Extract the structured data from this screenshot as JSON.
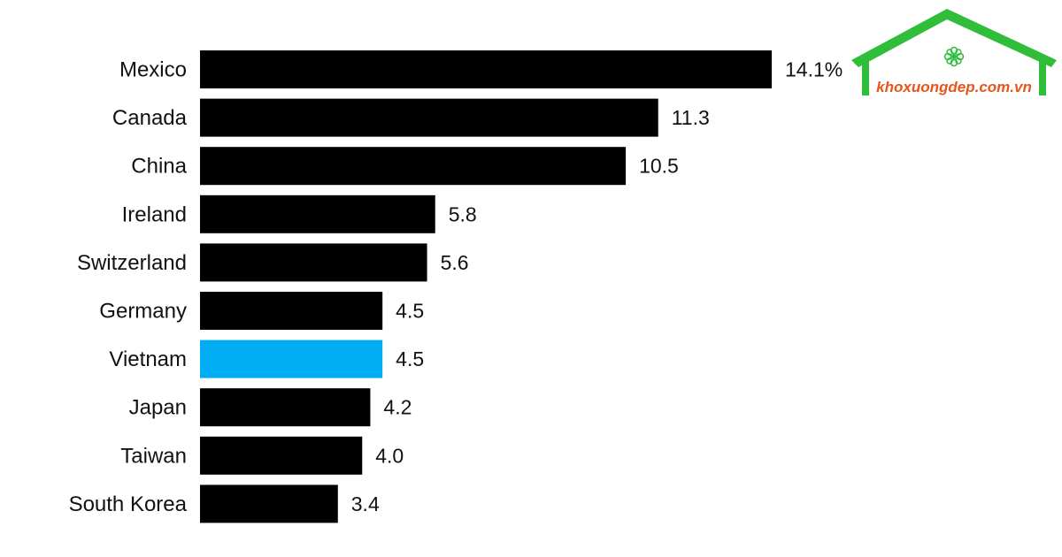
{
  "chart_data": {
    "type": "bar",
    "orientation": "horizontal",
    "categories": [
      "Mexico",
      "Canada",
      "China",
      "Ireland",
      "Switzerland",
      "Germany",
      "Vietnam",
      "Japan",
      "Taiwan",
      "South Korea"
    ],
    "values": [
      14.1,
      11.3,
      10.5,
      5.8,
      5.6,
      4.5,
      4.5,
      4.2,
      4.0,
      3.4
    ],
    "value_labels": [
      "14.1%",
      "11.3",
      "10.5",
      "5.8",
      "5.6",
      "4.5",
      "4.5",
      "4.2",
      "4.0",
      "3.4"
    ],
    "highlight_category": "Vietnam",
    "colors": {
      "bar": "#000000",
      "highlight": "#00adf2"
    },
    "title": "",
    "xlabel": "",
    "ylabel": "",
    "xlim": [
      0,
      14.1
    ],
    "grid": false,
    "legend": "none"
  },
  "logo": {
    "text": "khoxuongdep.com.vn",
    "icon": "flower-icon",
    "roof_color": "#2fbd3a",
    "text_color": "#e8551c"
  }
}
